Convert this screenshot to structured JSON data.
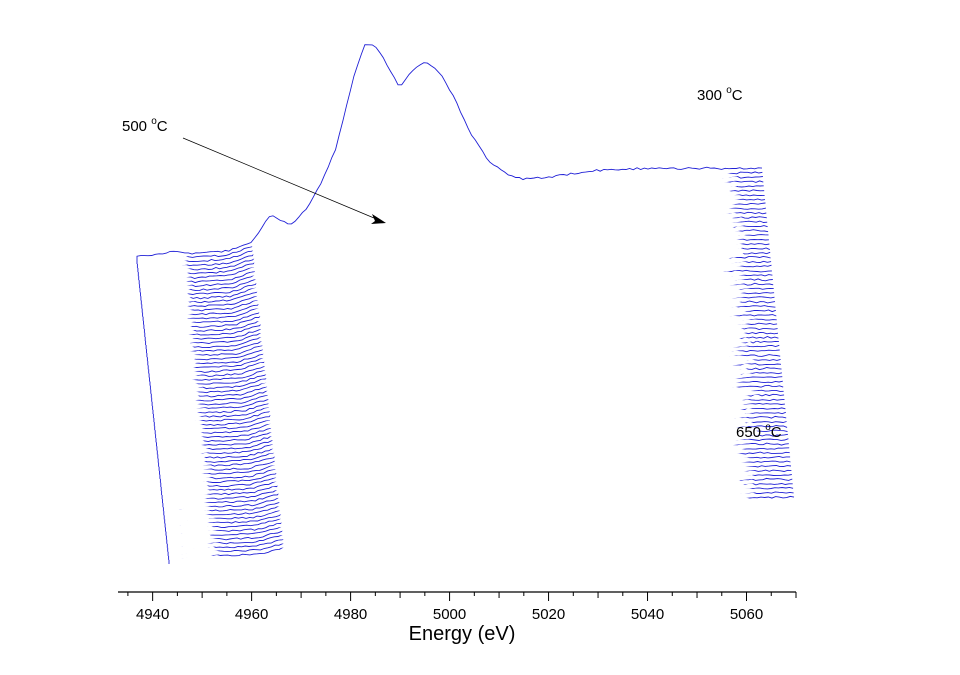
{
  "chart_data": {
    "type": "line",
    "subtype": "waterfall-stacked-spectra",
    "title": "",
    "xlabel": "Energy (eV)",
    "ylabel": "",
    "xlim": [
      4933,
      5070
    ],
    "x_ticks": [
      4940,
      4960,
      4980,
      5000,
      5020,
      5040,
      5060
    ],
    "grid": false,
    "legend": "none",
    "series_count": 75,
    "line_color": "#1f1fd6",
    "annotations": [
      {
        "id": "label-top",
        "text": "300 °C",
        "base": "300 ",
        "sup": "o",
        "unit": "C"
      },
      {
        "id": "label-mid",
        "text": "500 °C",
        "base": "500 ",
        "sup": "o",
        "unit": "C",
        "arrow": true
      },
      {
        "id": "label-bottom",
        "text": "650 °C",
        "base": "650 ",
        "sup": "o",
        "unit": "C"
      }
    ],
    "first_spectrum": "300 °C",
    "last_spectrum": "650 °C",
    "temperature_range": [
      300,
      650
    ],
    "spectrum_profile_normalized": [
      [
        4933,
        0.03
      ],
      [
        4940,
        0.03
      ],
      [
        4944,
        0.05
      ],
      [
        4948,
        0.04
      ],
      [
        4955,
        0.05
      ],
      [
        4960,
        0.09
      ],
      [
        4963,
        0.19
      ],
      [
        4964,
        0.22
      ],
      [
        4966,
        0.19
      ],
      [
        4968,
        0.17
      ],
      [
        4971,
        0.24
      ],
      [
        4974,
        0.36
      ],
      [
        4977,
        0.52
      ],
      [
        4979,
        0.7
      ],
      [
        4981,
        0.88
      ],
      [
        4983,
        1.0
      ],
      [
        4985,
        0.99
      ],
      [
        4987,
        0.92
      ],
      [
        4990,
        0.8
      ],
      [
        4992,
        0.87
      ],
      [
        4995,
        0.92
      ],
      [
        4998,
        0.87
      ],
      [
        5001,
        0.75
      ],
      [
        5004,
        0.6
      ],
      [
        5008,
        0.46
      ],
      [
        5012,
        0.4
      ],
      [
        5015,
        0.38
      ],
      [
        5020,
        0.39
      ],
      [
        5030,
        0.42
      ],
      [
        5040,
        0.43
      ],
      [
        5050,
        0.43
      ],
      [
        5060,
        0.43
      ],
      [
        5070,
        0.43
      ]
    ]
  }
}
